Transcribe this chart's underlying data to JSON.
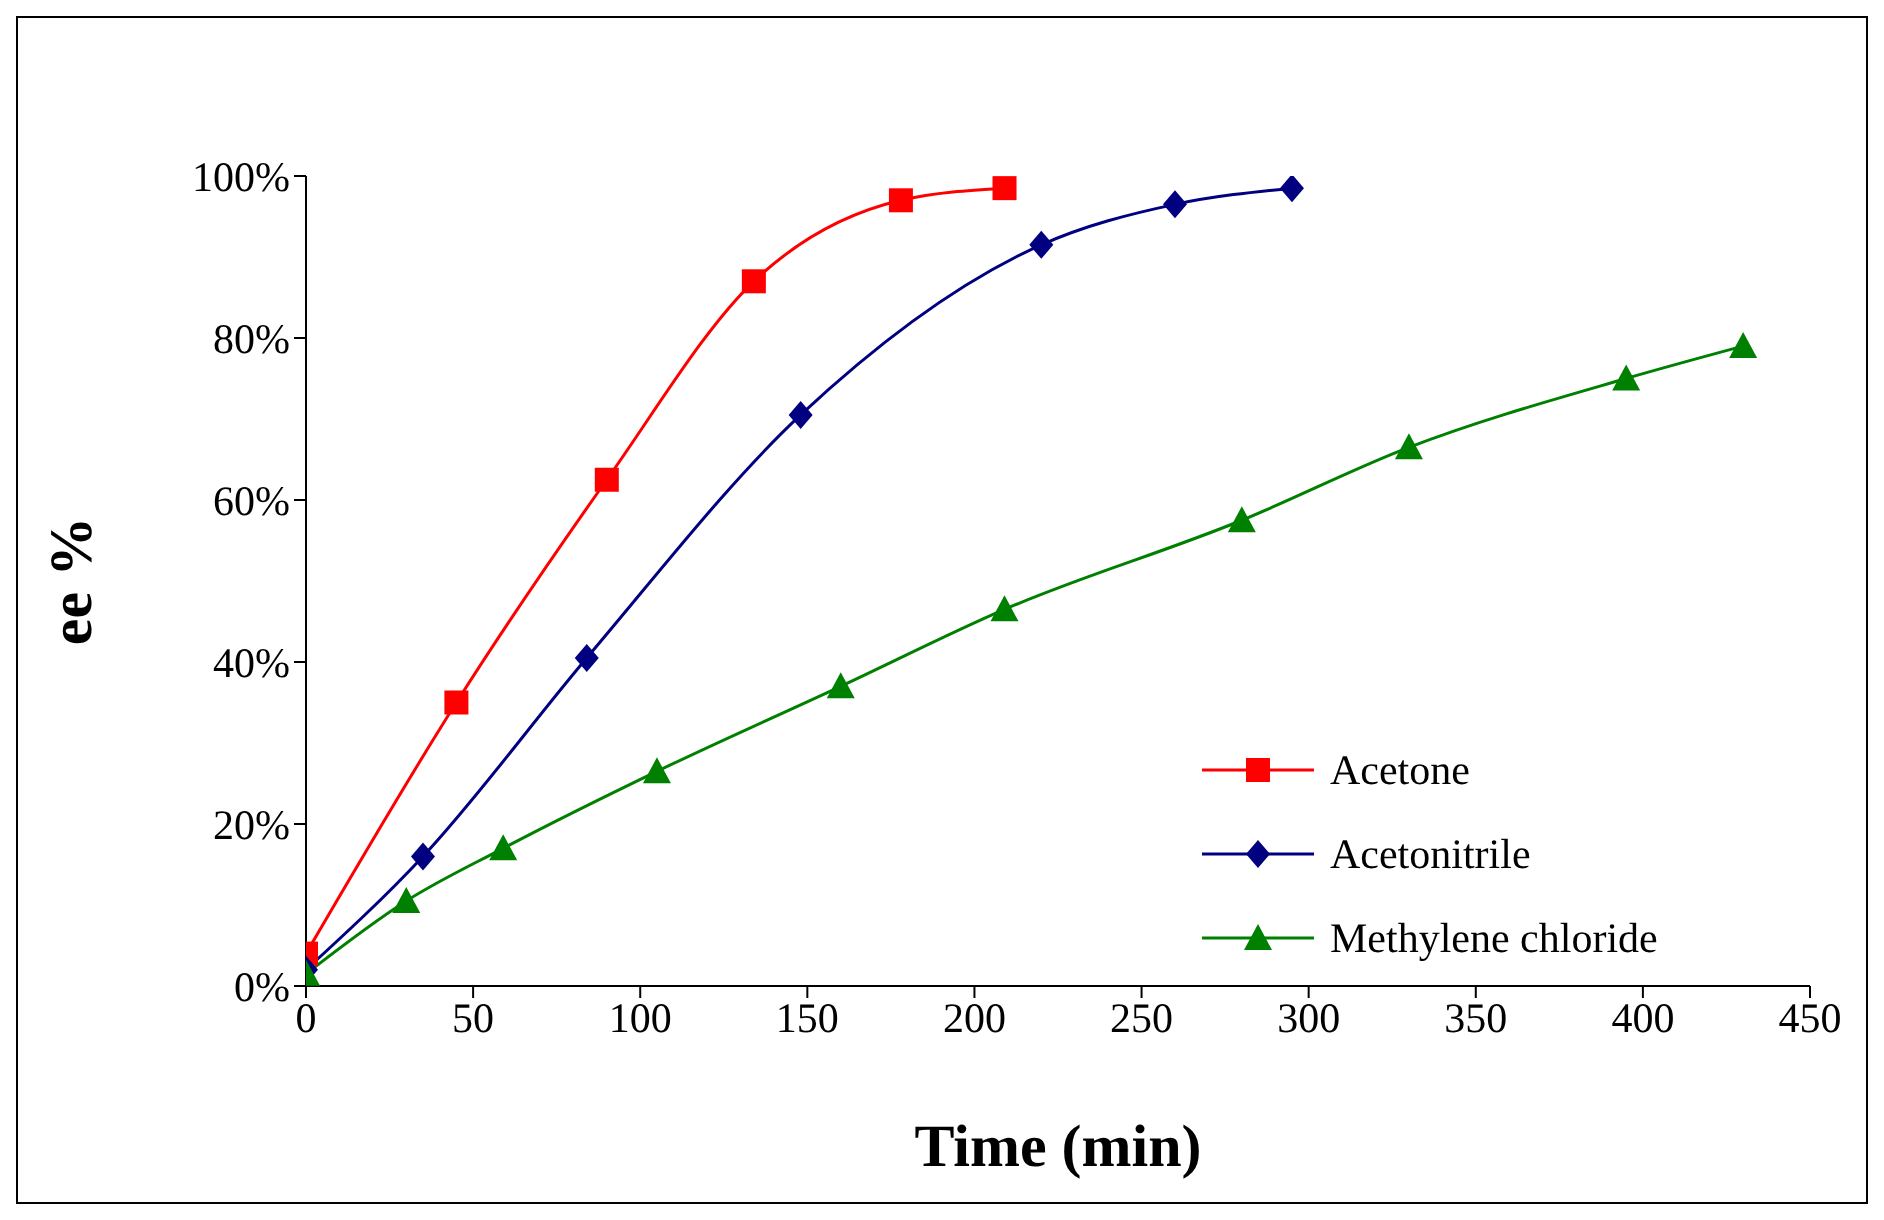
{
  "chart_data": {
    "type": "line",
    "xlabel": "Time (min)",
    "ylabel": "ee %",
    "xlim": [
      0,
      450
    ],
    "xticks": [
      0,
      50,
      100,
      150,
      200,
      250,
      300,
      350,
      400,
      450
    ],
    "ylim": [
      0,
      100
    ],
    "yticks": [
      {
        "value": 0,
        "label": "0%"
      },
      {
        "value": 20,
        "label": "20%"
      },
      {
        "value": 40,
        "label": "40%"
      },
      {
        "value": 60,
        "label": "60%"
      },
      {
        "value": 80,
        "label": "80%"
      },
      {
        "value": 100,
        "label": "100%"
      }
    ],
    "grid": false,
    "legend": "right",
    "series": [
      {
        "name": "Acetone",
        "color": "#ff0000",
        "marker": "square",
        "x": [
          0,
          45,
          90,
          134,
          178,
          209
        ],
        "values": [
          4,
          35,
          62.5,
          87,
          97,
          98.5
        ]
      },
      {
        "name": "Acetonitrile",
        "color": "#000080",
        "marker": "diamond",
        "x": [
          0,
          35,
          84,
          148,
          220,
          260,
          295
        ],
        "values": [
          2,
          16,
          40.5,
          70.5,
          91.5,
          96.5,
          98.5
        ]
      },
      {
        "name": "Methylene chloride",
        "color": "#008000",
        "marker": "triangle",
        "x": [
          0,
          30,
          59,
          105,
          160,
          209,
          280,
          330,
          395,
          430
        ],
        "values": [
          1.5,
          10.5,
          17,
          26.5,
          37,
          46.5,
          57.5,
          66.5,
          75,
          79
        ]
      }
    ]
  }
}
